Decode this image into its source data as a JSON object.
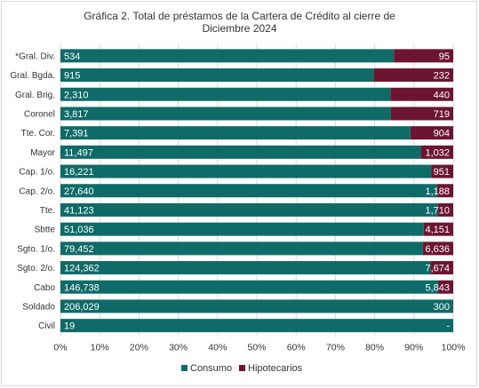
{
  "chart_data": {
    "type": "bar",
    "orientation": "horizontal",
    "stacked": "percent",
    "title_line1": "Gráfica 2. Total de préstamos de la Cartera de Crédito al cierre de",
    "title_line2": "Diciembre 2024",
    "categories": [
      "*Gral. Div.",
      "Gral. Bgda.",
      "Gral. Brig.",
      "Coronel",
      "Tte. Cor.",
      "Mayor",
      "Cap. 1/o.",
      "Cap. 2/o.",
      "Tte.",
      "Sbtte",
      "Sgto. 1/o.",
      "Sgto. 2/o.",
      "Cabo",
      "Soldado",
      "Civil"
    ],
    "series": [
      {
        "name": "Consumo",
        "color": "#0f6b68",
        "values": [
          534,
          915,
          2310,
          3817,
          7391,
          11497,
          16221,
          27640,
          41123,
          51036,
          79452,
          124362,
          146738,
          206029,
          19
        ],
        "labels": [
          "534",
          "915",
          "2,310",
          "3,817",
          "7,391",
          "11,497",
          "16,221",
          "27,640",
          "41,123",
          "51,036",
          "79,452",
          "124,362",
          "146,738",
          "206,029",
          "19"
        ]
      },
      {
        "name": "Hipotecarios",
        "color": "#6b1530",
        "values": [
          95,
          232,
          440,
          719,
          904,
          1032,
          951,
          1188,
          1710,
          4151,
          6636,
          7674,
          5843,
          300,
          0
        ],
        "labels": [
          "95",
          "232",
          "440",
          "719",
          "904",
          "1,032",
          "951",
          "1,188",
          "1,710",
          "4,151",
          "6,636",
          "7,674",
          "5,843",
          "300",
          "-"
        ]
      }
    ],
    "x_ticks": [
      "0%",
      "10%",
      "20%",
      "30%",
      "40%",
      "50%",
      "60%",
      "70%",
      "80%",
      "90%",
      "100%"
    ],
    "xlim": [
      0,
      100
    ],
    "legend_position": "bottom"
  }
}
